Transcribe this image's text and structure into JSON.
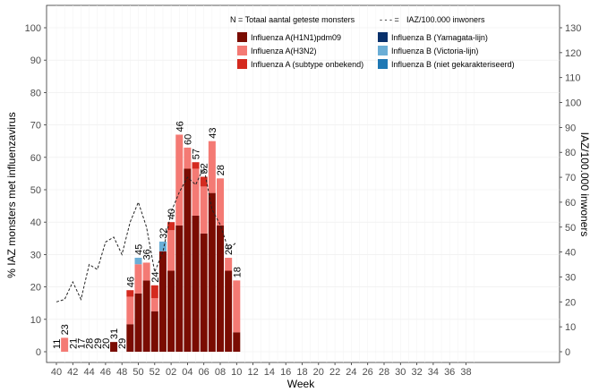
{
  "chart_data": {
    "type": "bar",
    "xlabel": "Week",
    "ylabel_left": "% IAZ monsters met influenzavirus",
    "ylabel_right": "IAZ/100.000 inwoners",
    "ylim_left": [
      0,
      105
    ],
    "ylim_right": [
      0,
      136.5
    ],
    "y_ticks_left": [
      0,
      10,
      20,
      30,
      40,
      50,
      60,
      70,
      80,
      90,
      100
    ],
    "y_ticks_right": [
      0,
      10,
      20,
      30,
      40,
      50,
      60,
      70,
      80,
      90,
      100,
      110,
      120,
      130
    ],
    "x_tick_labels": [
      "40",
      "42",
      "44",
      "46",
      "48",
      "50",
      "52",
      "02",
      "04",
      "06",
      "08",
      "10",
      "12",
      "14",
      "16",
      "18",
      "20",
      "22",
      "24",
      "26",
      "28",
      "30",
      "32",
      "34",
      "36",
      "38"
    ],
    "weeks": [
      "40",
      "41",
      "42",
      "43",
      "44",
      "45",
      "46",
      "47",
      "48",
      "49",
      "50",
      "51",
      "52",
      "01",
      "02",
      "03",
      "04",
      "05",
      "06",
      "07",
      "08",
      "09",
      "10"
    ],
    "n_labels": [
      "11",
      "23",
      "21",
      "17",
      "28",
      "29",
      "20",
      "31",
      "29",
      "46",
      "45",
      "36",
      "24",
      "32",
      "40",
      "46",
      "60",
      "57",
      "52",
      "43",
      "28",
      "28",
      "18"
    ],
    "legend": {
      "n_title": "N = Totaal aantal geteste monsters",
      "line_title": "IAZ/100.000 inwoners",
      "line_prefix": "- - - =",
      "entries": [
        {
          "key": "h1n1",
          "label": "Influenza A(H1N1)pdm09",
          "color": "#7a0c02"
        },
        {
          "key": "h3n2",
          "label": "Influenza A(H3N2)",
          "color": "#f47a74"
        },
        {
          "key": "a_unk",
          "label": "Influenza A (subtype onbekend)",
          "color": "#d42a1f"
        },
        {
          "key": "b_yam",
          "label": "Influenza B (Yamagata-lijn)",
          "color": "#08306b"
        },
        {
          "key": "b_vic",
          "label": "Influenza B (Victoria-lijn)",
          "color": "#6baed6"
        },
        {
          "key": "b_unk",
          "label": "Influenza B (niet gekarakteriseerd)",
          "color": "#1f78b4"
        }
      ]
    },
    "series": [
      {
        "key": "h1n1",
        "values": [
          0,
          0,
          0,
          0,
          0,
          0,
          0,
          3,
          0,
          8.5,
          18,
          22,
          12.5,
          31,
          25,
          39,
          56.5,
          42,
          36.5,
          49,
          39,
          25,
          6
        ]
      },
      {
        "key": "h3n2",
        "values": [
          0,
          4.3,
          0,
          0,
          0,
          0,
          0,
          0,
          0,
          8.5,
          9,
          5.5,
          4,
          0,
          12.5,
          28,
          6.5,
          14.5,
          14.5,
          16,
          14.5,
          4,
          16
        ]
      },
      {
        "key": "a_unk",
        "values": [
          0,
          0,
          0,
          0,
          0,
          0,
          0,
          0,
          0,
          2,
          0,
          0,
          4,
          0,
          2.5,
          0,
          0,
          2,
          3,
          0,
          0,
          0,
          0
        ]
      },
      {
        "key": "b_yam",
        "values": [
          0,
          0,
          0,
          0,
          0,
          0,
          0,
          0,
          0,
          0,
          0,
          0,
          0,
          0,
          0,
          0,
          0,
          0,
          0,
          0,
          0,
          0,
          0
        ]
      },
      {
        "key": "b_vic",
        "values": [
          0,
          0,
          0,
          0,
          0,
          0,
          0,
          0,
          0,
          0,
          2,
          0,
          0,
          3,
          0,
          0,
          0,
          0,
          0,
          0,
          0,
          0,
          0
        ]
      },
      {
        "key": "b_unk",
        "values": [
          0,
          0,
          0,
          0,
          0,
          0,
          0,
          0,
          0,
          0,
          0,
          0,
          0,
          0,
          0,
          0,
          0,
          0,
          0,
          0,
          0,
          0,
          0
        ]
      }
    ],
    "iaz_line": {
      "name": "IAZ/100.000 inwoners",
      "values": [
        20,
        21,
        28,
        21,
        35,
        33,
        44,
        46,
        39,
        52,
        60,
        50,
        32,
        40,
        56,
        64,
        70,
        67,
        74,
        57,
        51,
        41,
        44
      ]
    }
  }
}
